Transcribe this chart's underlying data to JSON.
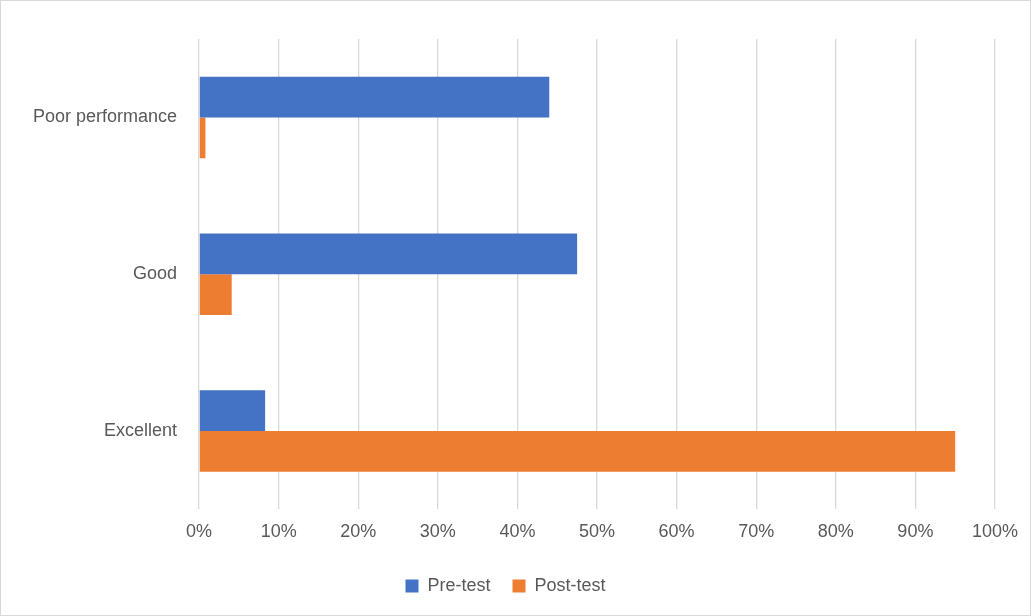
{
  "chart_data": {
    "type": "bar",
    "orientation": "horizontal",
    "categories": [
      "Poor performance",
      "Good",
      "Excellent"
    ],
    "series": [
      {
        "name": "Pre-test",
        "color": "#4472c4",
        "values": [
          44.0,
          47.5,
          8.3
        ]
      },
      {
        "name": "Post-test",
        "color": "#ed7d31",
        "values": [
          0.8,
          4.1,
          95.0
        ]
      }
    ],
    "xlim": [
      0,
      100
    ],
    "xticks": [
      {
        "value": 0,
        "label": "0%"
      },
      {
        "value": 10,
        "label": "10%"
      },
      {
        "value": 20,
        "label": "20%"
      },
      {
        "value": 30,
        "label": "30%"
      },
      {
        "value": 40,
        "label": "40%"
      },
      {
        "value": 50,
        "label": "50%"
      },
      {
        "value": 60,
        "label": "60%"
      },
      {
        "value": 70,
        "label": "70%"
      },
      {
        "value": 80,
        "label": "80%"
      },
      {
        "value": 90,
        "label": "90%"
      },
      {
        "value": 100,
        "label": "100%"
      }
    ],
    "grid": "x",
    "legend": "bottom"
  }
}
